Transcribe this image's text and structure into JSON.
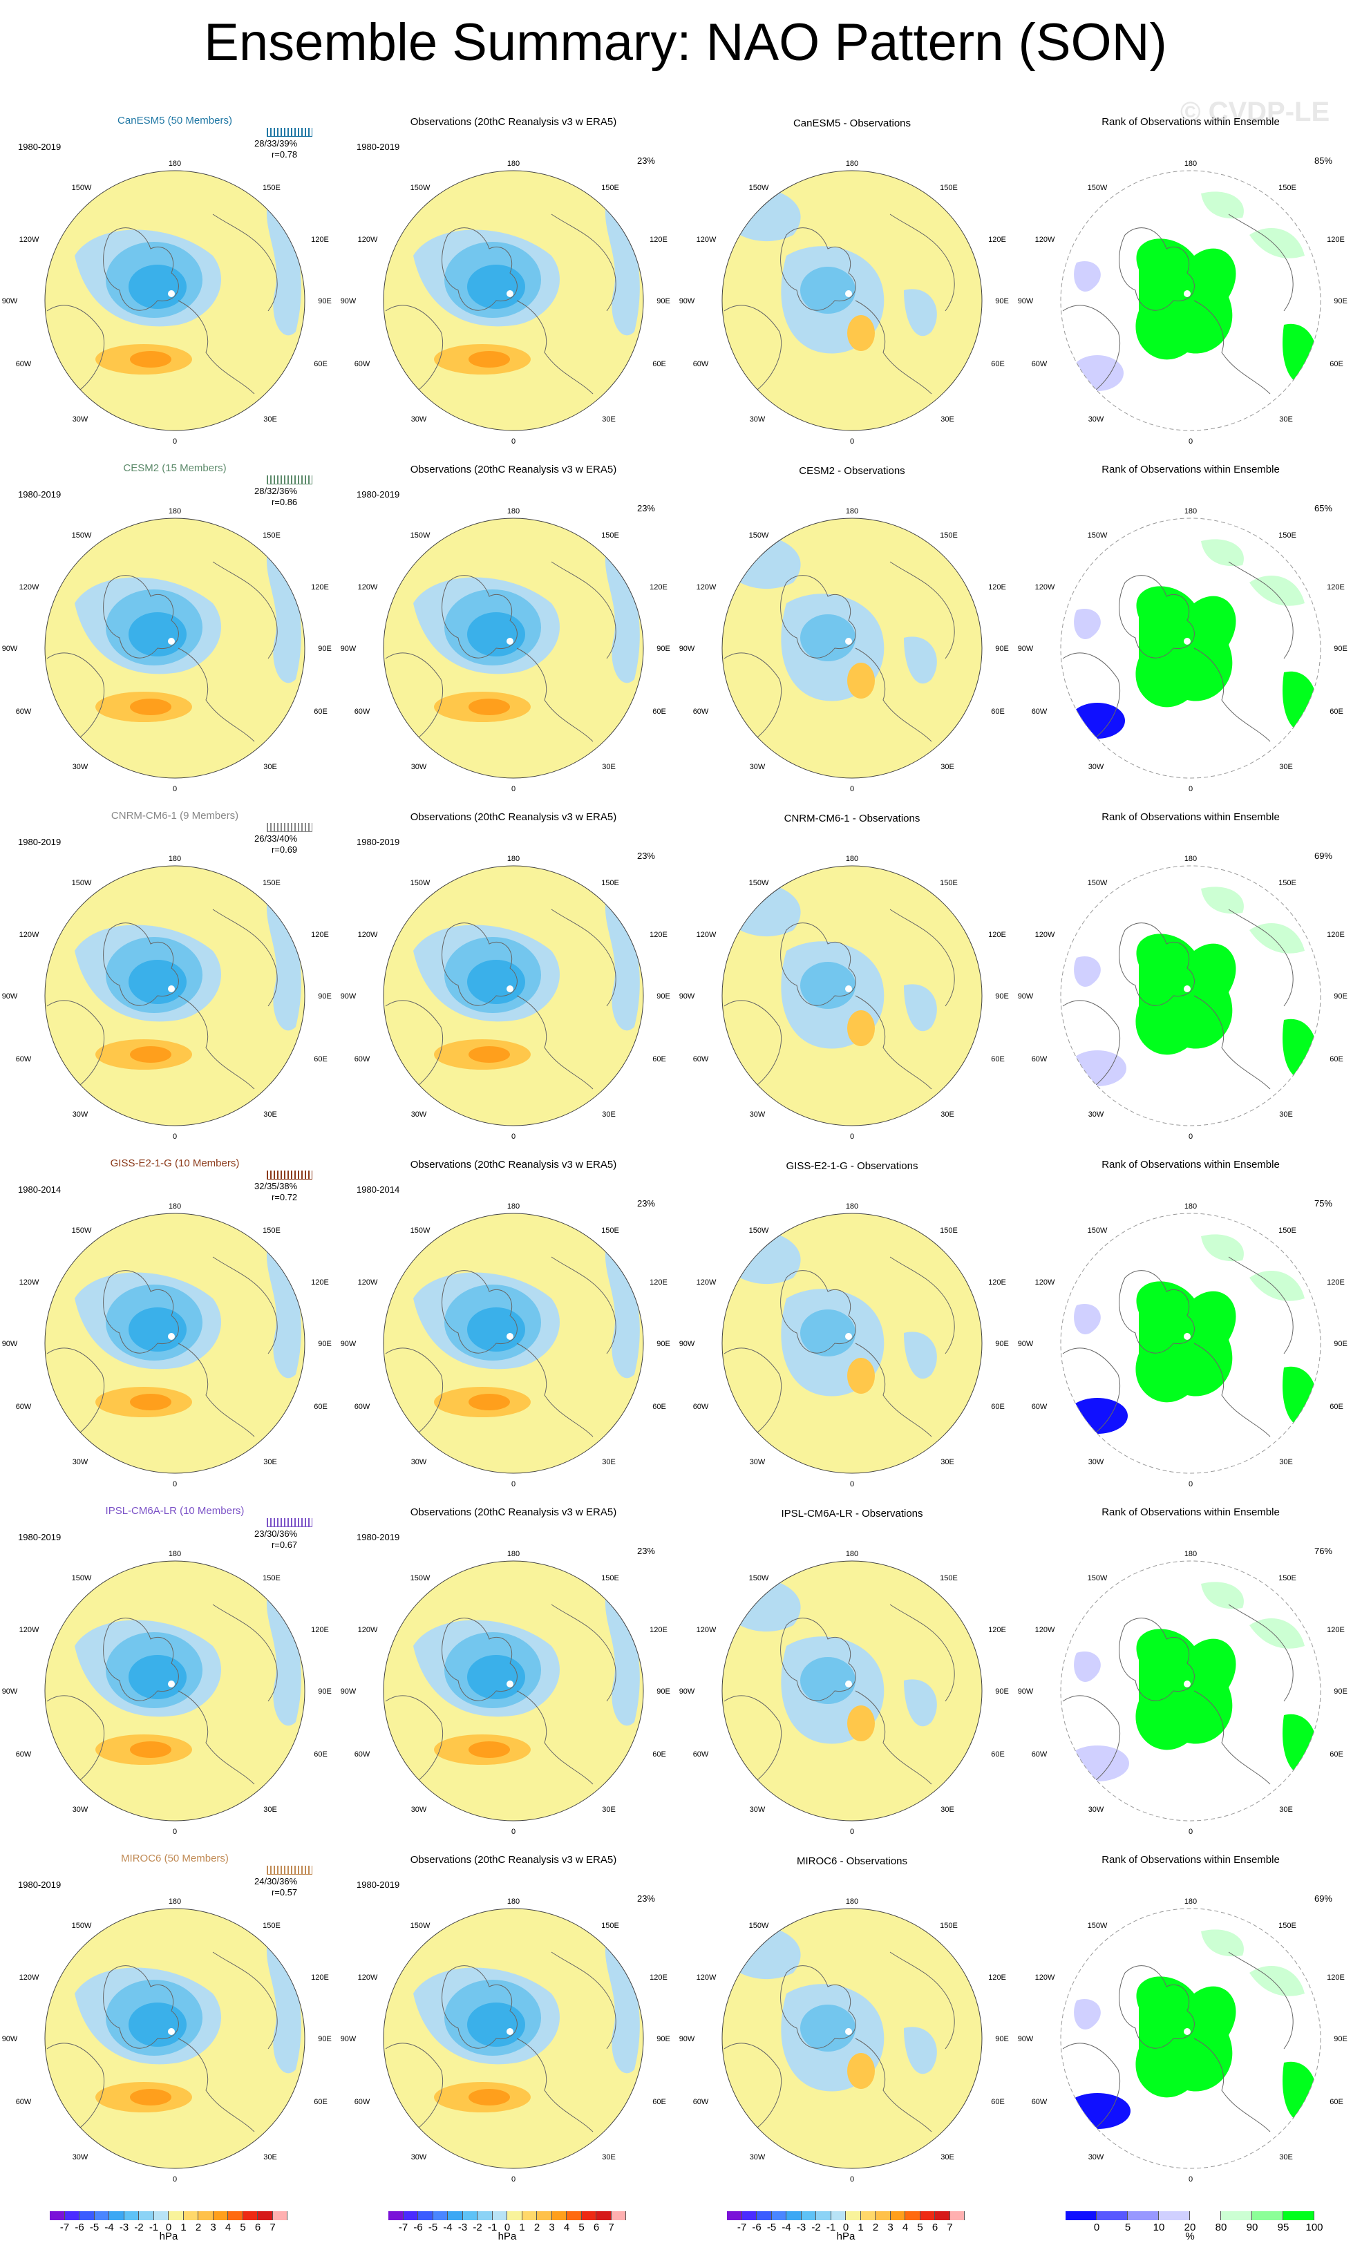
{
  "title": "Ensemble Summary: NAO Pattern (SON)",
  "watermark": "© CVDP-LE",
  "colors": {
    "yellow": "#f9f39b",
    "lightblue": "#b4dcf2",
    "midblue": "#73c6ee",
    "blue": "#3ab0ea",
    "orange1": "#ffc74a",
    "orange2": "#ff9f1c",
    "green": "#00ff1c",
    "lightgreen": "#ccffd3",
    "darkblue": "#1010ff",
    "lightpurple": "#d0d0ff"
  },
  "obs_title": "Observations (20thC Reanalysis v3 w ERA5)",
  "rank_title": "Rank of Observations within Ensemble",
  "lon_labels": {
    "top": "180",
    "bottom": "0",
    "ul": "150W",
    "ur": "150E",
    "l1": "120W",
    "r1": "120E",
    "l2": "90W",
    "r2": "90E",
    "l3": "60W",
    "r3": "60E",
    "ll": "30W",
    "lr": "30E"
  },
  "rows": [
    {
      "model": "CanESM5 (50 Members)",
      "model_color": "#1f77a4",
      "period": "1980-2019",
      "stats": "28/33/39%",
      "r": "r=0.78",
      "obs_pct": "23%",
      "diff_title": "CanESM5 - Observations",
      "rank_pct": "85%"
    },
    {
      "model": "CESM2 (15 Members)",
      "model_color": "#5c8a6a",
      "period": "1980-2019",
      "stats": "28/32/36%",
      "r": "r=0.86",
      "obs_pct": "23%",
      "diff_title": "CESM2 - Observations",
      "rank_pct": "65%"
    },
    {
      "model": "CNRM-CM6-1 (9 Members)",
      "model_color": "#888888",
      "period": "1980-2019",
      "stats": "26/33/40%",
      "r": "r=0.69",
      "obs_pct": "23%",
      "diff_title": "CNRM-CM6-1 - Observations",
      "rank_pct": "69%"
    },
    {
      "model": "GISS-E2-1-G (10 Members)",
      "model_color": "#8b3a1a",
      "period": "1980-2014",
      "stats": "32/35/38%",
      "r": "r=0.72",
      "obs_pct": "23%",
      "diff_title": "GISS-E2-1-G - Observations",
      "rank_pct": "75%"
    },
    {
      "model": "IPSL-CM6A-LR (10 Members)",
      "model_color": "#7b52c7",
      "period": "1980-2019",
      "stats": "23/30/36%",
      "r": "r=0.67",
      "obs_pct": "23%",
      "diff_title": "IPSL-CM6A-LR - Observations",
      "rank_pct": "76%"
    },
    {
      "model": "MIROC6 (50 Members)",
      "model_color": "#c08a54",
      "period": "1980-2019",
      "stats": "24/30/36%",
      "r": "r=0.57",
      "obs_pct": "23%",
      "diff_title": "MIROC6 - Observations",
      "rank_pct": "69%"
    }
  ],
  "colorbar_hpa": {
    "labels": [
      "-7",
      "-6",
      "-5",
      "-4",
      "-3",
      "-2",
      "-1",
      "0",
      "1",
      "2",
      "3",
      "4",
      "5",
      "6",
      "7"
    ],
    "colors": [
      "#7a12d8",
      "#4b2cff",
      "#3a5cff",
      "#4a86ff",
      "#3ca8f4",
      "#5ec2f6",
      "#8cd3f6",
      "#b8e3f6",
      "#f9f39b",
      "#ffd86a",
      "#ffc14a",
      "#ff9f1c",
      "#ff6a10",
      "#ee2a14",
      "#d61a1a",
      "#ffb0b0"
    ],
    "unit": "hPa"
  },
  "colorbar_pct": {
    "labels": [
      "0",
      "5",
      "10",
      "20",
      "80",
      "90",
      "95",
      "100"
    ],
    "colors": [
      "#1010ff",
      "#5858ff",
      "#9898ff",
      "#d0d0ff",
      "#ffffff",
      "#ccffd3",
      "#8cff98",
      "#00ff1c"
    ],
    "unit": "%"
  }
}
